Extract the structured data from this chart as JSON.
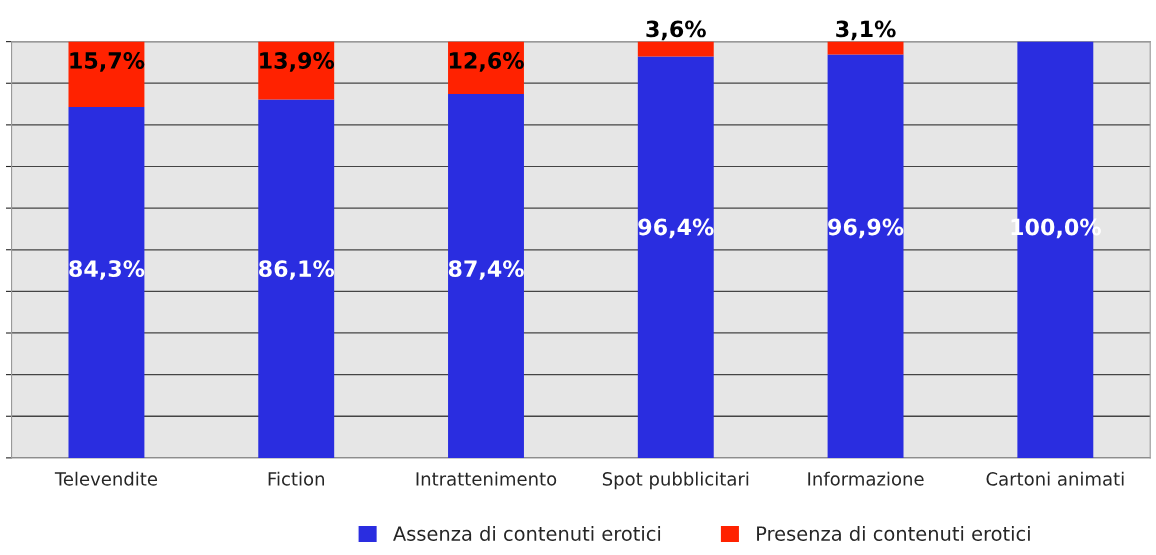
{
  "chart_data": {
    "type": "bar",
    "stacked": true,
    "categories": [
      "Televendite",
      "Fiction",
      "Intrattenimento",
      "Spot pubblicitari",
      "Informazione",
      "Cartoni animati"
    ],
    "series": [
      {
        "name": "Assenza di contenuti erotici",
        "color": "#2a2de0",
        "values": [
          84.3,
          86.1,
          87.4,
          96.4,
          96.9,
          100.0
        ],
        "value_labels": [
          "84,3%",
          "86,1%",
          "87,4%",
          "96,4%",
          "96,9%",
          "100,0%"
        ]
      },
      {
        "name": "Presenza di contenuti erotici",
        "color": "#ff2200",
        "values": [
          15.7,
          13.9,
          12.6,
          3.6,
          3.1,
          0
        ],
        "value_labels": [
          "15,7%",
          "13,9%",
          "12,6%",
          "3,6%",
          "3,1%",
          null
        ]
      }
    ],
    "ylim": [
      0,
      100
    ],
    "yticks": [
      {
        "value": 0,
        "label": null
      },
      {
        "value": 10,
        "label": null
      },
      {
        "value": 20,
        "label": null
      },
      {
        "value": 30,
        "label": null
      },
      {
        "value": 40,
        "label": null
      },
      {
        "value": 50,
        "label": null
      },
      {
        "value": 60,
        "label": null
      },
      {
        "value": 70,
        "label": null
      },
      {
        "value": 80,
        "label": null
      },
      {
        "value": 90,
        "label": null
      },
      {
        "value": 100,
        "label": null
      }
    ],
    "tick_labels": "x",
    "grid": "y",
    "legend": "bottom"
  }
}
